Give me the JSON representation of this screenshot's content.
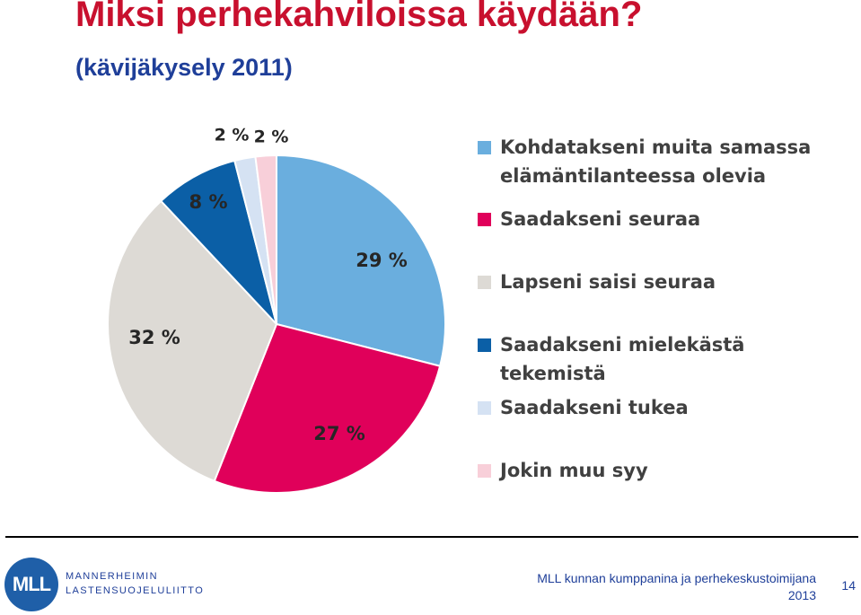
{
  "slide": {
    "title": "Miksi perhekahviloissa käydään?",
    "subtitle": "(kävijäkysely 2011)"
  },
  "chart_data": {
    "type": "pie",
    "title": "",
    "start_angle_deg": 0,
    "direction": "clockwise",
    "legend_position": "right",
    "slices": [
      {
        "label": "Kohdatakseni muita samassa elämäntilanteessa olevia",
        "value": 29,
        "display": "29 %",
        "color": "#6aaede"
      },
      {
        "label": "Saadakseni seuraa",
        "value": 27,
        "display": "27 %",
        "color": "#e0005a"
      },
      {
        "label": "Lapseni saisi seuraa",
        "value": 32,
        "display": "32 %",
        "color": "#dddad5"
      },
      {
        "label": "Saadakseni mielekästä tekemistä",
        "value": 8,
        "display": "8 %",
        "color": "#0b5fa6"
      },
      {
        "label": "Saadakseni tukea",
        "value": 2,
        "display": "2 %",
        "color": "#d5e2f3"
      },
      {
        "label": "Jokin muu syy",
        "value": 2,
        "display": "2 %",
        "color": "#f8cfd9"
      }
    ],
    "legend": [
      {
        "lines": [
          "Kohdatakseni muita samassa",
          "elämäntilanteessa olevia"
        ],
        "color": "#6aaede"
      },
      {
        "lines": [
          "Saadakseni seuraa"
        ],
        "color": "#e0005a"
      },
      {
        "lines": [
          "Lapseni saisi seuraa"
        ],
        "color": "#dddad5"
      },
      {
        "lines": [
          "Saadakseni mielekästä tekemistä"
        ],
        "color": "#0b5fa6"
      },
      {
        "lines": [
          "Saadakseni tukea"
        ],
        "color": "#d5e2f3"
      },
      {
        "lines": [
          "Jokin muu syy"
        ],
        "color": "#f8cfd9"
      }
    ]
  },
  "footer": {
    "logo_short": "MLL",
    "logo_line1": "MANNERHEIMIN",
    "logo_line2": "LASTENSUOJELULIITTO",
    "caption_line1": "MLL kunnan kumppanina ja perhekeskustoimijana",
    "caption_line2": "2013",
    "page_number": "14"
  }
}
